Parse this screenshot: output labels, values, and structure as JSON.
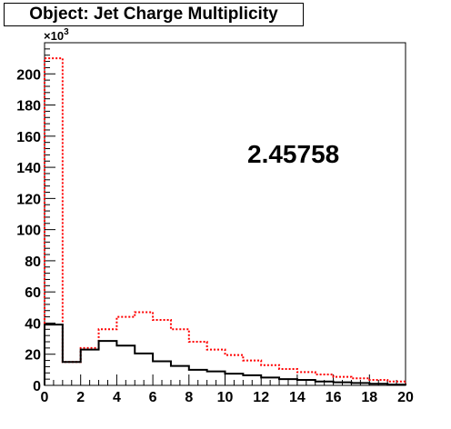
{
  "chart_data": {
    "type": "bar",
    "title": "Object: Jet Charge Multiplicity",
    "xlabel": "",
    "ylabel": "",
    "xlim": [
      0,
      20
    ],
    "ylim": [
      0,
      220
    ],
    "y_multiplier": "×10",
    "y_multiplier_exponent": "3",
    "x_ticks": [
      "0",
      "2",
      "4",
      "6",
      "8",
      "10",
      "12",
      "14",
      "16",
      "18",
      "20"
    ],
    "y_ticks": [
      "0",
      "20",
      "40",
      "60",
      "80",
      "100",
      "120",
      "140",
      "160",
      "180",
      "200"
    ],
    "annotation": "2.45758",
    "bins": [
      0,
      1,
      2,
      3,
      4,
      5,
      6,
      7,
      8,
      9,
      10,
      11,
      12,
      13,
      14,
      15,
      16,
      17,
      18,
      19
    ],
    "series": [
      {
        "color": "#000000",
        "style": "solid",
        "values": [
          39,
          15,
          23,
          28.5,
          25.5,
          20.5,
          15.5,
          12.5,
          10,
          9,
          7.5,
          6.5,
          5,
          4,
          3.5,
          2.5,
          2,
          1.5,
          1,
          0.5
        ]
      },
      {
        "color": "#ff0000",
        "style": "dotted",
        "values": [
          210,
          15,
          24,
          36,
          44,
          47,
          42,
          36,
          28,
          23,
          19.5,
          16,
          13,
          10.5,
          8.5,
          7,
          5.5,
          4.5,
          3.5,
          2.5
        ]
      }
    ],
    "grid": false,
    "legend": "none"
  }
}
